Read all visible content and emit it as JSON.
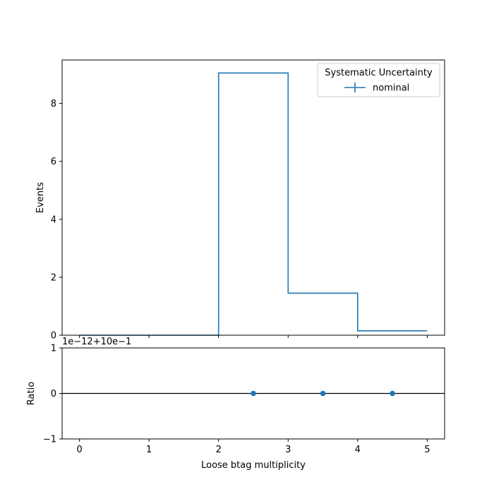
{
  "chart_data": [
    {
      "type": "histogram",
      "role": "main",
      "ylabel": "Events",
      "xlim": [
        -0.25,
        5.25
      ],
      "ylim": [
        0,
        9.5
      ],
      "bin_edges": [
        0,
        1,
        2,
        3,
        4,
        5
      ],
      "x_ticks": [
        0,
        1,
        2,
        3,
        4,
        5
      ],
      "y_ticks": [
        0,
        2,
        4,
        6,
        8
      ],
      "y_tick_labels": [
        "0",
        "2",
        "4",
        "6",
        "8"
      ],
      "legend": {
        "title": "Systematic Uncertainty",
        "placement": "top-right",
        "entries": [
          "nominal"
        ]
      },
      "series": [
        {
          "name": "nominal",
          "color": "#1f77b4",
          "values": [
            0.0,
            0.0,
            9.05,
            1.45,
            0.15
          ]
        }
      ]
    },
    {
      "type": "scatter",
      "role": "ratio",
      "xlabel": "Loose btag multiplicity",
      "ylabel": "Ratio",
      "offset_text": "1e−12+10e−1",
      "xlim": [
        -0.25,
        5.25
      ],
      "ylim": [
        -1,
        1
      ],
      "x_ticks": [
        0,
        1,
        2,
        3,
        4,
        5
      ],
      "x_tick_labels": [
        "0",
        "1",
        "2",
        "3",
        "4",
        "5"
      ],
      "y_ticks": [
        -1,
        0,
        1
      ],
      "y_tick_labels": [
        "−1",
        "0",
        "1"
      ],
      "reference_line": 0,
      "series": [
        {
          "color": "#1f77b4",
          "x": [
            2.5,
            3.5,
            4.5
          ],
          "y": [
            0,
            0,
            0
          ]
        }
      ]
    }
  ]
}
